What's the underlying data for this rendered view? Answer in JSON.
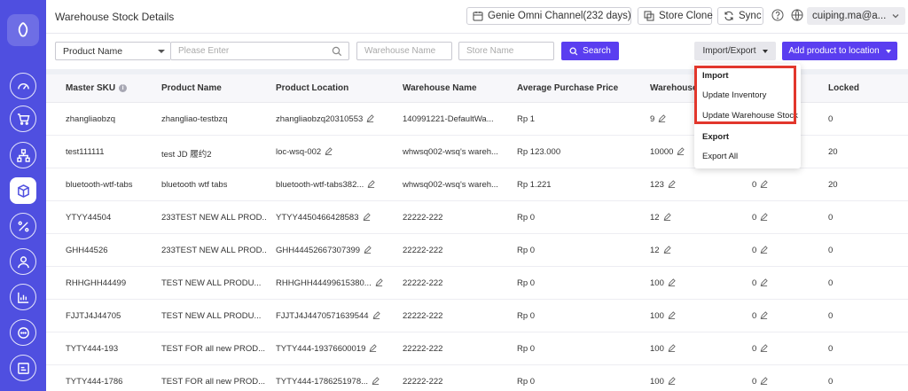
{
  "header": {
    "title": "Warehouse Stock Details",
    "channel_select": "Genie Omni Channel(232 days)",
    "store_clone_label": "Store Clone",
    "sync_label": "Sync",
    "user": "cuiping.ma@a..."
  },
  "filters": {
    "field_select": "Product Name",
    "search_placeholder": "Please Enter",
    "warehouse_placeholder": "Warehouse Name",
    "store_placeholder": "Store Name",
    "search_button": "Search",
    "import_export_button": "Import/Export",
    "add_product_button": "Add product to location"
  },
  "dropdown": {
    "import_header": "Import",
    "update_inventory": "Update Inventory",
    "update_warehouse_stock": "Update Warehouse Stock",
    "export_header": "Export",
    "export_all": "Export All"
  },
  "table": {
    "columns": [
      "Master SKU",
      "Product Name",
      "Product Location",
      "Warehouse Name",
      "Average Purchase Price",
      "Warehouse",
      "Locked"
    ],
    "rows": [
      {
        "sku": "zhangliaobzq",
        "name": "zhangliao-testbzq",
        "location": "zhangliaobzq20310553",
        "warehouse": "140991221-DefaultWa...",
        "price": "Rp 1",
        "stock": "9",
        "reserved": "",
        "locked": "0"
      },
      {
        "sku": "test111111",
        "name": "test JD 履约2",
        "location": "loc-wsq-002",
        "warehouse": "whwsq002-wsq's wareh...",
        "price": "Rp 123.000",
        "stock": "10000",
        "reserved": "",
        "locked": "20"
      },
      {
        "sku": "bluetooth-wtf-tabs",
        "name": "bluetooth wtf tabs",
        "location": "bluetooth-wtf-tabs382...",
        "warehouse": "whwsq002-wsq's wareh...",
        "price": "Rp 1.221",
        "stock": "123",
        "reserved": "0",
        "locked": "20"
      },
      {
        "sku": "YTYY44504",
        "name": "233TEST NEW ALL PROD...",
        "location": "YTYY4450466428583",
        "warehouse": "22222-222",
        "price": "Rp 0",
        "stock": "12",
        "reserved": "0",
        "locked": "0"
      },
      {
        "sku": "GHH44526",
        "name": "233TEST NEW ALL PROD...",
        "location": "GHH44452667307399",
        "warehouse": "22222-222",
        "price": "Rp 0",
        "stock": "12",
        "reserved": "0",
        "locked": "0"
      },
      {
        "sku": "RHHGHH44499",
        "name": "TEST NEW ALL PRODU...",
        "location": "RHHGHH44499615380...",
        "warehouse": "22222-222",
        "price": "Rp 0",
        "stock": "100",
        "reserved": "0",
        "locked": "0"
      },
      {
        "sku": "FJJTJ4J44705",
        "name": "TEST NEW ALL PRODU...",
        "location": "FJJTJ4J4470571639544",
        "warehouse": "22222-222",
        "price": "Rp 0",
        "stock": "100",
        "reserved": "0",
        "locked": "0"
      },
      {
        "sku": "TYTY444-193",
        "name": "TEST FOR all new PROD...",
        "location": "TYTY444-19376600019",
        "warehouse": "22222-222",
        "price": "Rp 0",
        "stock": "100",
        "reserved": "0",
        "locked": "0"
      },
      {
        "sku": "TYTY444-1786",
        "name": "TEST FOR all new PROD...",
        "location": "TYTY444-1786251978...",
        "warehouse": "22222-222",
        "price": "Rp 0",
        "stock": "100",
        "reserved": "0",
        "locked": "0"
      }
    ]
  },
  "sidebar": {
    "icons": [
      "dashboard-icon",
      "cart-icon",
      "hierarchy-icon",
      "box-icon",
      "percent-icon",
      "users-icon",
      "chart-icon",
      "chat-icon",
      "report-icon"
    ],
    "active_icon": "box-icon"
  },
  "colors": {
    "sidebar": "#4f4fe0",
    "primary": "#5a3ef0",
    "highlight": "#e2372c"
  }
}
